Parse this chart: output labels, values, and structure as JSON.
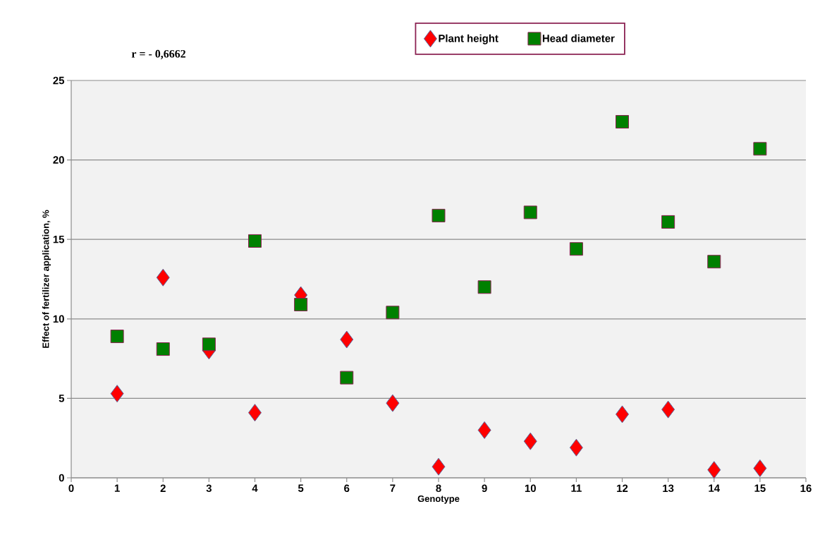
{
  "chart_data": {
    "type": "scatter",
    "xlabel": "Genotype",
    "ylabel": "Effect of  fertilizer application, %",
    "annotations": [
      "r = - 0,6662"
    ],
    "x": [
      1,
      2,
      3,
      4,
      5,
      6,
      7,
      8,
      9,
      10,
      11,
      12,
      13,
      14,
      15
    ],
    "series": [
      {
        "name": "Plant height",
        "color": "#ff0000",
        "marker": "diamond",
        "values": [
          5.3,
          12.6,
          8.0,
          4.1,
          11.5,
          8.7,
          4.7,
          0.7,
          3.0,
          2.3,
          1.9,
          4.0,
          4.3,
          0.5,
          0.6
        ]
      },
      {
        "name": "Head diameter",
        "color": "#008000",
        "marker": "square",
        "values": [
          8.9,
          8.1,
          8.4,
          14.9,
          10.9,
          6.3,
          10.4,
          16.5,
          12.0,
          16.7,
          14.4,
          22.4,
          16.1,
          13.6,
          20.7
        ]
      }
    ],
    "xlim": [
      0,
      16
    ],
    "xticks": [
      0,
      1,
      2,
      3,
      4,
      5,
      6,
      7,
      8,
      9,
      10,
      11,
      12,
      13,
      14,
      15,
      16
    ],
    "ylim": [
      0,
      25
    ],
    "yticks": [
      0,
      5,
      10,
      15,
      20,
      25
    ],
    "grid": "y",
    "legend": "top"
  }
}
